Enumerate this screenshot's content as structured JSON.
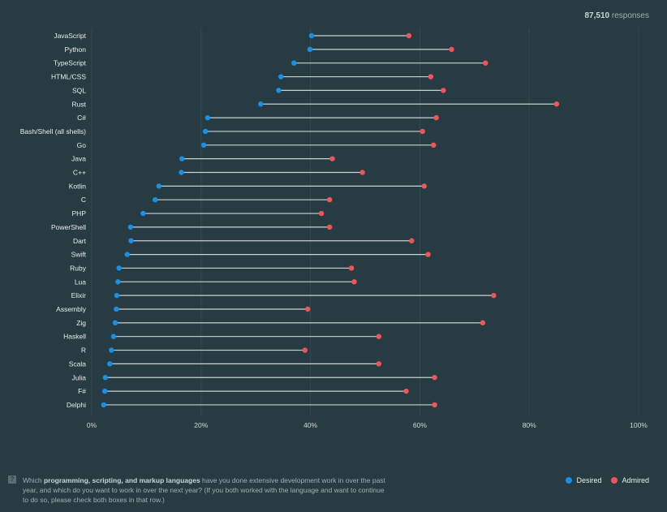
{
  "header": {
    "responses_count": "87,510",
    "responses_label": "responses"
  },
  "footer": {
    "icon": "question-icon",
    "icon_glyph": "?",
    "q_prefix": "Which ",
    "q_bold": "programming, scripting, and markup languages",
    "q_suffix": " have you done extensive development work in over the past year, and which do you want to work in over the next year? (If you both worked with the language and want to continue to do so, please check both boxes in that row.)"
  },
  "legend": {
    "desired_label": "Desired",
    "admired_label": "Admired",
    "desired_color": "#1a8fe6",
    "admired_color": "#f2545b"
  },
  "chart_data": {
    "type": "dumbbell",
    "xlim": [
      0,
      100
    ],
    "x_ticks": [
      "0%",
      "20%",
      "40%",
      "60%",
      "80%",
      "100%"
    ],
    "x_tick_values": [
      0,
      20,
      40,
      60,
      80,
      100
    ],
    "categories": [
      "JavaScript",
      "Python",
      "TypeScript",
      "HTML/CSS",
      "SQL",
      "Rust",
      "C#",
      "Bash/Shell (all shells)",
      "Go",
      "Java",
      "C++",
      "Kotlin",
      "C",
      "PHP",
      "PowerShell",
      "Dart",
      "Swift",
      "Ruby",
      "Lua",
      "Elixir",
      "Assembly",
      "Zig",
      "Haskell",
      "R",
      "Scala",
      "Julia",
      "F#",
      "Delphi"
    ],
    "series": [
      {
        "name": "Desired",
        "values": [
          40.2,
          39.9,
          37.0,
          34.6,
          34.2,
          30.9,
          21.2,
          20.8,
          20.5,
          16.5,
          16.4,
          12.3,
          11.6,
          9.4,
          7.1,
          7.2,
          6.5,
          5.0,
          4.8,
          4.6,
          4.5,
          4.3,
          4.0,
          3.6,
          3.3,
          2.5,
          2.4,
          2.2
        ]
      },
      {
        "name": "Admired",
        "values": [
          58.0,
          65.8,
          72.0,
          62.0,
          64.3,
          85.0,
          63.0,
          60.5,
          62.5,
          44.0,
          49.5,
          60.8,
          43.5,
          42.0,
          43.5,
          58.5,
          61.5,
          47.5,
          48.0,
          73.5,
          39.5,
          71.5,
          52.5,
          39.0,
          52.5,
          62.7,
          57.5,
          62.7
        ]
      }
    ]
  }
}
